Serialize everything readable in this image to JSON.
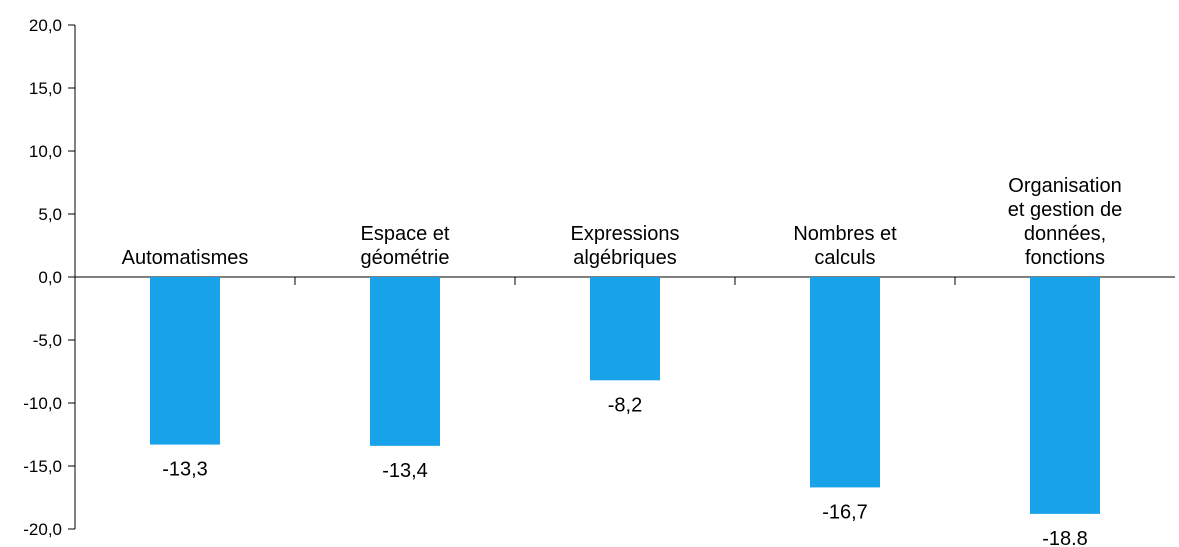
{
  "chart_data": {
    "type": "bar",
    "title": "",
    "xlabel": "",
    "ylabel": "",
    "ylim": [
      -20,
      20
    ],
    "ytick_step": 5,
    "ytick_labels": [
      "-20,0",
      "-15,0",
      "-10,0",
      "-5,0",
      "0,0",
      "5,0",
      "10,0",
      "15,0",
      "20,0"
    ],
    "categories": [
      [
        "Automatismes"
      ],
      [
        "Espace et",
        "géométrie"
      ],
      [
        "Expressions",
        "algébriques"
      ],
      [
        "Nombres et",
        "calculs"
      ],
      [
        "Organisation",
        "et gestion de",
        "données,",
        "fonctions"
      ]
    ],
    "values": [
      -13.3,
      -13.4,
      -8.2,
      -16.7,
      -18.8
    ],
    "value_labels": [
      "-13,3",
      "-13,4",
      "-8,2",
      "-16,7",
      "-18.8"
    ],
    "bar_color": "#17a2ea",
    "grid": false,
    "legend": "none"
  }
}
